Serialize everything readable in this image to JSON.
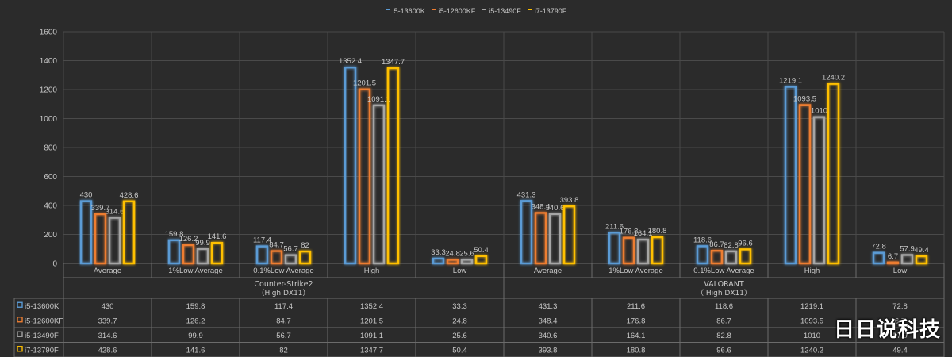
{
  "legend": [
    {
      "name": "i5-13600K",
      "color": "#5b9bd5"
    },
    {
      "name": "i5-12600KF",
      "color": "#ed7d31"
    },
    {
      "name": "i5-13490F",
      "color": "#a5a5a5"
    },
    {
      "name": "i7-13790F",
      "color": "#ffc000"
    }
  ],
  "watermark": "日日说科技",
  "chart_data": {
    "type": "bar",
    "ylim": [
      0,
      1600
    ],
    "yticks": [
      0,
      200,
      400,
      600,
      800,
      1000,
      1200,
      1400,
      1600
    ],
    "grid": true,
    "legend_position": "top",
    "categories": [
      "Average",
      "1%Low Average",
      "0.1%Low Average",
      "High",
      "Low",
      "Average",
      "1%Low Average",
      "0.1%Low Average",
      "High",
      "Low"
    ],
    "groups": [
      {
        "name_line1": "Counter-Strike2",
        "name_line2": "（High  DX11）"
      },
      {
        "name_line1": "VALORANT",
        "name_line2": "（  High DX11）"
      }
    ],
    "series": [
      {
        "name": "i5-13600K",
        "color": "#5b9bd5",
        "values": [
          430,
          159.8,
          117.4,
          1352.4,
          33.3,
          431.3,
          211.6,
          118.6,
          1219.1,
          72.8
        ]
      },
      {
        "name": "i5-12600KF",
        "color": "#ed7d31",
        "values": [
          339.7,
          126.2,
          84.7,
          1201.5,
          24.8,
          348.4,
          176.8,
          86.7,
          1093.5,
          6.7
        ]
      },
      {
        "name": "i5-13490F",
        "color": "#a5a5a5",
        "values": [
          314.6,
          99.9,
          56.7,
          1091.1,
          25.6,
          340.6,
          164.1,
          82.8,
          1010,
          57.9
        ]
      },
      {
        "name": "i7-13790F",
        "color": "#ffc000",
        "values": [
          428.6,
          141.6,
          82,
          1347.7,
          50.4,
          393.8,
          180.8,
          96.6,
          1240.2,
          49.4
        ]
      }
    ]
  }
}
